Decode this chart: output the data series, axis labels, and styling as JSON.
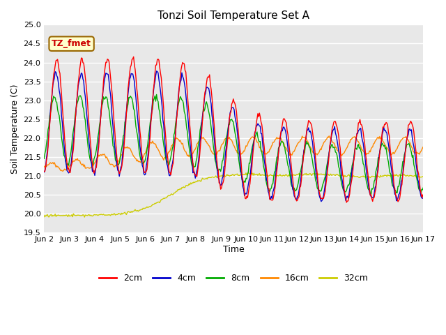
{
  "title": "Tonzi Soil Temperature Set A",
  "ylabel": "Soil Temperature (C)",
  "xlabel": "Time",
  "ylim": [
    19.5,
    25.0
  ],
  "yticks": [
    19.5,
    20.0,
    20.5,
    21.0,
    21.5,
    22.0,
    22.5,
    23.0,
    23.5,
    24.0,
    24.5,
    25.0
  ],
  "xtick_labels": [
    "Jun 2",
    "Jun 3",
    "Jun 4",
    "Jun 5",
    "Jun 6",
    "Jun 7",
    "Jun 8",
    "Jun 9",
    "Jun 10",
    "Jun 11",
    "Jun 12",
    "Jun 13",
    "Jun 14",
    "Jun 15",
    "Jun 16",
    "Jun 17"
  ],
  "bg_color": "#e8e8e8",
  "fig_color": "#ffffff",
  "grid_color": "#ffffff",
  "annotation_text": "TZ_fmet",
  "annotation_bg": "#ffffcc",
  "annotation_border": "#996600",
  "annotation_text_color": "#cc0000",
  "colors": {
    "2cm": "#ff0000",
    "4cm": "#0000cc",
    "8cm": "#00aa00",
    "16cm": "#ff8800",
    "32cm": "#cccc00"
  },
  "legend_labels": [
    "2cm",
    "4cm",
    "8cm",
    "16cm",
    "32cm"
  ]
}
